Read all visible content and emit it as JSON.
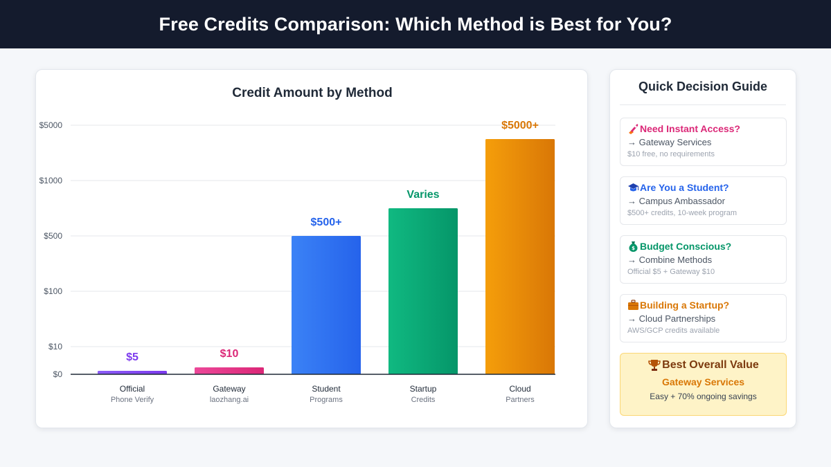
{
  "header": {
    "title": "Free Credits Comparison: Which Method is Best for You?"
  },
  "chart_data": {
    "type": "bar",
    "title": "Credit Amount by Method",
    "xlabel": "",
    "ylabel": "",
    "yscale": "custom-categorical",
    "y_ticks": [
      "$0",
      "$10",
      "$100",
      "$500",
      "$1000",
      "$5000"
    ],
    "grid": true,
    "categories": [
      "Official",
      "Gateway",
      "Student",
      "Startup",
      "Cloud"
    ],
    "sublabels": [
      "Phone Verify",
      "laozhang.ai",
      "Programs",
      "Credits",
      "Partners"
    ],
    "values": [
      5,
      10,
      500,
      null,
      5000
    ],
    "data_labels": [
      "$5",
      "$10",
      "$500+",
      "Varies",
      "$5000+"
    ],
    "colors": [
      [
        "#8b5cf6",
        "#7c3aed"
      ],
      [
        "#ec4899",
        "#db2777"
      ],
      [
        "#3b82f6",
        "#2563eb"
      ],
      [
        "#10b981",
        "#059669"
      ],
      [
        "#f59e0b",
        "#d97706"
      ]
    ],
    "label_colors": [
      "#7c3aed",
      "#db2777",
      "#2563eb",
      "#059669",
      "#d97706"
    ]
  },
  "guide": {
    "title": "Quick Decision Guide",
    "items": [
      {
        "icon": "rocket-icon",
        "question": "Need Instant Access?",
        "answer": "→ Gateway Services",
        "detail": "$10 free, no requirements",
        "color": "#db2777"
      },
      {
        "icon": "graduation-cap-icon",
        "question": "Are You a Student?",
        "answer": "→ Campus Ambassador",
        "detail": "$500+ credits, 10-week program",
        "color": "#2563eb"
      },
      {
        "icon": "money-bag-icon",
        "question": "Budget Conscious?",
        "answer": "→ Combine Methods",
        "detail": "Official $5 + Gateway $10",
        "color": "#059669"
      },
      {
        "icon": "briefcase-icon",
        "question": "Building a Startup?",
        "answer": "→ Cloud Partnerships",
        "detail": "AWS/GCP credits available",
        "color": "#d97706"
      }
    ],
    "best": {
      "icon": "trophy-icon",
      "title": "Best Overall Value",
      "subtitle": "Gateway Services",
      "detail": "Easy + 70% ongoing savings"
    }
  }
}
